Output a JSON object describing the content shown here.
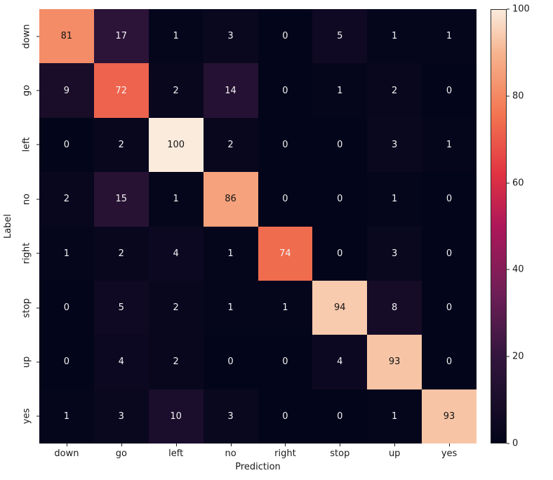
{
  "figure": {
    "background": "#ffffff",
    "text_color": "#1a1a1a"
  },
  "chart_data": {
    "type": "heatmap",
    "title": "",
    "xlabel": "Prediction",
    "ylabel": "Label",
    "x_categories": [
      "down",
      "go",
      "left",
      "no",
      "right",
      "stop",
      "up",
      "yes"
    ],
    "y_categories": [
      "down",
      "go",
      "left",
      "no",
      "right",
      "stop",
      "up",
      "yes"
    ],
    "matrix": [
      [
        81,
        17,
        1,
        3,
        0,
        5,
        1,
        1
      ],
      [
        9,
        72,
        2,
        14,
        0,
        1,
        2,
        0
      ],
      [
        0,
        2,
        100,
        2,
        0,
        0,
        3,
        1
      ],
      [
        2,
        15,
        1,
        86,
        0,
        0,
        1,
        0
      ],
      [
        1,
        2,
        4,
        1,
        74,
        0,
        3,
        0
      ],
      [
        0,
        5,
        2,
        1,
        1,
        94,
        8,
        0
      ],
      [
        0,
        4,
        2,
        0,
        0,
        4,
        93,
        0
      ],
      [
        1,
        3,
        10,
        3,
        0,
        0,
        1,
        93
      ]
    ],
    "vmin": 0,
    "vmax": 100,
    "annot": true,
    "grid": false,
    "legend_position": "right-colorbar",
    "colorbar_ticks": [
      0,
      20,
      40,
      60,
      80,
      100
    ],
    "colormap": {
      "name": "rocket",
      "stops": [
        [
          0.0,
          "#03051A"
        ],
        [
          0.2,
          "#33163D"
        ],
        [
          0.35,
          "#701F57"
        ],
        [
          0.5,
          "#AD1759"
        ],
        [
          0.62,
          "#E13342"
        ],
        [
          0.76,
          "#F37651"
        ],
        [
          0.9,
          "#F6B48F"
        ],
        [
          1.0,
          "#FAEBDD"
        ]
      ]
    },
    "annotation_text_colors": {
      "dark": "#141414",
      "light": "#f2f2f2",
      "dark_text_threshold": 80
    }
  }
}
